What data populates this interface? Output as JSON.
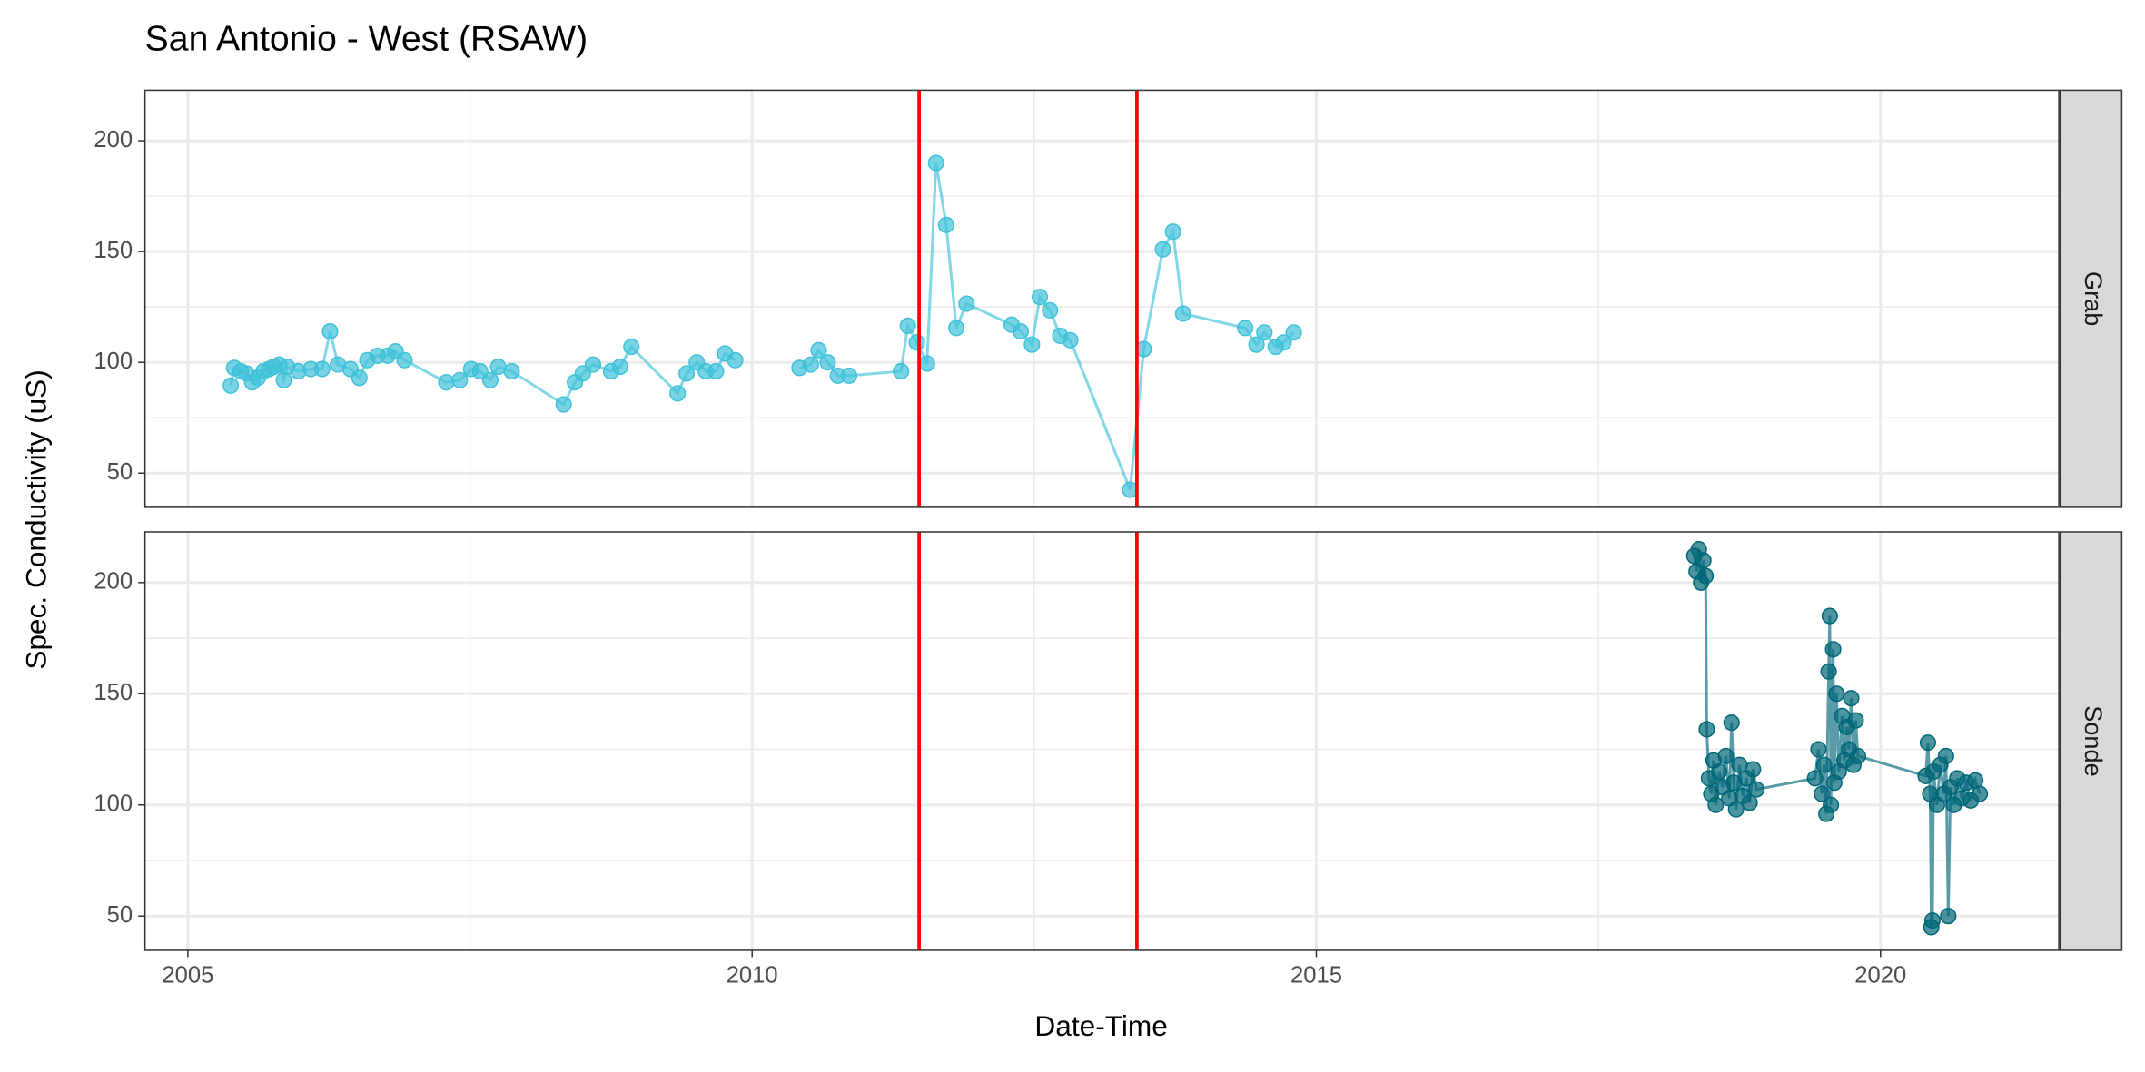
{
  "title": "San Antonio - West (RSAW)",
  "x_label": "Date-Time",
  "y_label": "Spec. Conductivity (uS)",
  "chart_data": [
    {
      "type": "line",
      "panel": "Grab",
      "color": "#3fc1d8",
      "markers": true,
      "grid": true,
      "xlim": [
        2004.62,
        2021.58
      ],
      "xticks": [
        2005,
        2010,
        2015,
        2020
      ],
      "ylim": [
        34.6,
        222.8
      ],
      "yticks": [
        50,
        100,
        150,
        200
      ],
      "vlines": [
        2011.48,
        2013.41
      ],
      "vline_color": "#ff0000",
      "x": [
        2005.38,
        2005.41,
        2005.47,
        2005.52,
        2005.57,
        2005.62,
        2005.67,
        2005.72,
        2005.76,
        2005.81,
        2005.85,
        2005.88,
        2005.98,
        2006.09,
        2006.19,
        2006.26,
        2006.33,
        2006.44,
        2006.52,
        2006.59,
        2006.68,
        2006.77,
        2006.84,
        2006.92,
        2007.29,
        2007.41,
        2007.51,
        2007.59,
        2007.68,
        2007.75,
        2007.87,
        2008.33,
        2008.43,
        2008.5,
        2008.59,
        2008.75,
        2008.83,
        2008.93,
        2009.34,
        2009.42,
        2009.51,
        2009.59,
        2009.68,
        2009.76,
        2009.85,
        null,
        2010.42,
        2010.52,
        2010.59,
        2010.67,
        2010.76,
        2010.86,
        2011.32,
        2011.38,
        2011.46,
        2011.55,
        2011.63,
        2011.72,
        2011.81,
        2011.9,
        2012.3,
        2012.38,
        2012.48,
        2012.55,
        2012.64,
        2012.73,
        2012.82,
        2013.35,
        2013.47,
        2013.64,
        2013.73,
        2013.82,
        2014.37,
        2014.47,
        2014.54,
        2014.64,
        2014.71,
        2014.8
      ],
      "values": [
        89.5,
        97.5,
        96,
        95,
        91,
        93,
        96,
        97,
        98,
        99,
        92,
        98,
        96,
        97,
        97,
        114,
        99,
        97,
        93,
        101,
        103,
        103,
        105,
        101,
        91,
        92,
        97,
        96,
        92,
        98,
        96,
        81,
        91,
        95,
        99,
        96,
        98,
        107,
        86,
        95,
        100,
        96,
        96,
        104,
        101,
        null,
        97.5,
        99,
        105.5,
        100,
        94,
        94,
        96,
        116.5,
        109,
        99.5,
        190,
        162,
        115.5,
        126.5,
        117,
        114,
        108,
        129.5,
        123.5,
        112,
        110,
        42.5,
        106,
        151,
        159,
        122,
        115.5,
        108,
        113.5,
        107,
        109,
        113.5
      ]
    },
    {
      "type": "line",
      "panel": "Sonde",
      "color": "#006778",
      "markers": true,
      "grid": true,
      "xlim": [
        2004.62,
        2021.58
      ],
      "xticks": [
        2005,
        2010,
        2015,
        2020
      ],
      "ylim": [
        34.6,
        222.8
      ],
      "yticks": [
        50,
        100,
        150,
        200
      ],
      "vlines": [
        2011.48,
        2013.41
      ],
      "vline_color": "#ff0000",
      "x": [
        2018.35,
        2018.37,
        2018.39,
        2018.41,
        2018.43,
        2018.45,
        2018.46,
        2018.48,
        2018.5,
        2018.52,
        2018.54,
        2018.57,
        2018.6,
        2018.63,
        2018.66,
        2018.68,
        2018.7,
        2018.72,
        2018.75,
        2018.78,
        2018.81,
        2018.84,
        2018.87,
        2018.9,
        2019.42,
        2019.45,
        2019.48,
        2019.5,
        2019.52,
        2019.54,
        2019.55,
        2019.56,
        2019.58,
        2019.59,
        2019.61,
        2019.63,
        2019.66,
        2019.68,
        2019.7,
        2019.72,
        2019.74,
        2019.76,
        2019.78,
        2019.8,
        2020.4,
        2020.42,
        2020.44,
        2020.45,
        2020.46,
        2020.47,
        2020.5,
        2020.53,
        2020.56,
        2020.58,
        2020.6,
        2020.62,
        2020.65,
        2020.68,
        2020.72,
        2020.76,
        2020.8,
        2020.84,
        2020.88
      ],
      "values": [
        212,
        205,
        215,
        200,
        210,
        203,
        134,
        112,
        105,
        120,
        100,
        115,
        108,
        122,
        103,
        137,
        110,
        98,
        118,
        104,
        112,
        101,
        116,
        107,
        112,
        125,
        105,
        118,
        96,
        160,
        185,
        100,
        170,
        110,
        150,
        115,
        140,
        120,
        135,
        125,
        148,
        118,
        138,
        122,
        113,
        128,
        105,
        45,
        48,
        115,
        100,
        118,
        105,
        122,
        50,
        108,
        100,
        112,
        103,
        110,
        102,
        111,
        105
      ]
    }
  ]
}
